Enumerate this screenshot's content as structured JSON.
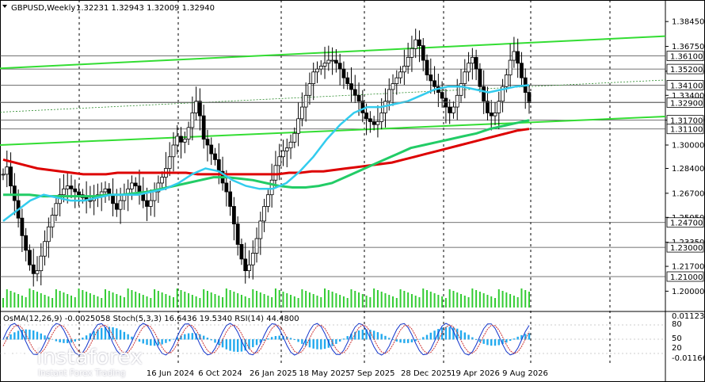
{
  "header": {
    "title": "GBPUSD,Weekly",
    "quote": "1.32231 1.32943 1.32009 1.32940"
  },
  "indicators": {
    "label": "OsMA(12,26,9) -0.0025058  Stoch(5,3,3) 16.6436 19.5340  RSI(14) 44.4800"
  },
  "logo": {
    "name": "instaforex",
    "tagline": "Instant Forex Trading"
  },
  "colors": {
    "grid": "#000000",
    "green_line": "#33dd33",
    "ma_red": "#dd0000",
    "ma_green": "#22cc66",
    "ma_cyan": "#33ccee",
    "candle": "#000000",
    "volume": "#33cc33",
    "osma": "#22aaee",
    "stoch_main": "#1133cc",
    "stoch_signal": "#cc3333",
    "rsi": "#444444",
    "price_tag": "#000000"
  },
  "chart_data": {
    "type": "candlestick",
    "symbol": "GBPUSD",
    "timeframe": "Weekly",
    "ylim": [
      1.1986,
      1.3949
    ],
    "price_ticks": [
      "1.38450",
      "1.36750",
      "1.35050",
      "1.33400",
      "1.31700",
      "1.30000",
      "1.28400",
      "1.26700",
      "1.25050",
      "1.23350",
      "1.21700",
      "1.20000"
    ],
    "level_tags": [
      "1.36100",
      "1.35200",
      "1.34100",
      "1.32900",
      "1.31700",
      "1.31100",
      "1.24700",
      "1.23000",
      "1.21000"
    ],
    "x_labels": [
      "16 Jun 2024",
      "6 Oct 2024",
      "26 Jan 2025",
      "18 May 2025",
      "7 Sep 2025",
      "28 Dec 2025",
      "19 Apr 2026",
      "9 Aug 2026"
    ],
    "close_path": [
      1.28,
      1.285,
      1.272,
      1.262,
      1.25,
      1.238,
      1.228,
      1.218,
      1.212,
      1.214,
      1.224,
      1.234,
      1.244,
      1.252,
      1.26,
      1.266,
      1.27,
      1.272,
      1.27,
      1.268,
      1.266,
      1.264,
      1.262,
      1.262,
      1.264,
      1.266,
      1.268,
      1.27,
      1.266,
      1.26,
      1.256,
      1.262,
      1.266,
      1.27,
      1.274,
      1.272,
      1.268,
      1.262,
      1.258,
      1.262,
      1.268,
      1.274,
      1.278,
      1.284,
      1.292,
      1.3,
      1.306,
      1.302,
      1.304,
      1.312,
      1.322,
      1.33,
      1.32,
      1.304,
      1.3,
      1.294,
      1.29,
      1.282,
      1.274,
      1.268,
      1.258,
      1.246,
      1.232,
      1.222,
      1.214,
      1.218,
      1.226,
      1.236,
      1.248,
      1.258,
      1.266,
      1.276,
      1.286,
      1.292,
      1.296,
      1.298,
      1.302,
      1.308,
      1.318,
      1.326,
      1.334,
      1.342,
      1.35,
      1.352,
      1.354,
      1.356,
      1.358,
      1.358,
      1.356,
      1.352,
      1.346,
      1.342,
      1.338,
      1.334,
      1.33,
      1.322,
      1.318,
      1.316,
      1.314,
      1.316,
      1.322,
      1.33,
      1.338,
      1.342,
      1.346,
      1.35,
      1.354,
      1.36,
      1.366,
      1.372,
      1.368,
      1.358,
      1.348,
      1.344,
      1.34,
      1.336,
      1.332,
      1.326,
      1.322,
      1.326,
      1.334,
      1.342,
      1.35,
      1.356,
      1.36,
      1.352,
      1.34,
      1.33,
      1.322,
      1.32,
      1.322,
      1.33,
      1.34,
      1.348,
      1.358,
      1.364,
      1.356,
      1.346,
      1.336,
      1.329
    ],
    "moving_averages": [
      {
        "color": "red",
        "values": [
          1.29,
          1.288,
          1.286,
          1.284,
          1.283,
          1.282,
          1.281,
          1.28,
          1.28,
          1.28,
          1.281,
          1.281,
          1.281,
          1.281,
          1.281,
          1.281,
          1.281,
          1.28,
          1.28,
          1.28,
          1.28,
          1.28,
          1.28,
          1.28,
          1.28,
          1.281,
          1.281,
          1.282,
          1.282,
          1.283,
          1.284,
          1.285,
          1.286,
          1.287,
          1.288,
          1.29,
          1.292,
          1.294,
          1.296,
          1.298,
          1.3,
          1.302,
          1.304,
          1.306,
          1.308,
          1.31,
          1.311
        ]
      },
      {
        "color": "green",
        "values": [
          1.266,
          1.266,
          1.266,
          1.265,
          1.265,
          1.265,
          1.265,
          1.265,
          1.266,
          1.266,
          1.267,
          1.268,
          1.27,
          1.272,
          1.274,
          1.276,
          1.278,
          1.278,
          1.277,
          1.276,
          1.274,
          1.272,
          1.271,
          1.271,
          1.272,
          1.274,
          1.278,
          1.282,
          1.286,
          1.29,
          1.294,
          1.298,
          1.3,
          1.302,
          1.304,
          1.306,
          1.308,
          1.311,
          1.313,
          1.315,
          1.317
        ]
      },
      {
        "color": "cyan",
        "values": [
          1.248,
          1.255,
          1.262,
          1.266,
          1.264,
          1.262,
          1.262,
          1.264,
          1.266,
          1.266,
          1.266,
          1.268,
          1.27,
          1.274,
          1.28,
          1.284,
          1.282,
          1.276,
          1.272,
          1.27,
          1.27,
          1.274,
          1.282,
          1.292,
          1.304,
          1.314,
          1.322,
          1.326,
          1.326,
          1.328,
          1.33,
          1.334,
          1.338,
          1.34,
          1.34,
          1.338,
          1.336,
          1.338,
          1.34,
          1.341
        ]
      }
    ],
    "trend_lines": [
      {
        "from": [
          0,
          1.3525
        ],
        "to": [
          1,
          1.3745
        ]
      },
      {
        "from": [
          0,
          1.3
        ],
        "to": [
          1,
          1.3195
        ]
      }
    ],
    "subwindow": {
      "ylim_labels": [
        "0.0112349",
        "80",
        "50",
        "20",
        "-0.0116644"
      ]
    }
  }
}
